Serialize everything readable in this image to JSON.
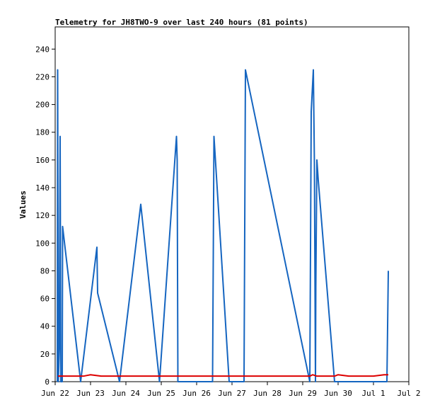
{
  "chart_data": {
    "type": "line",
    "title": "Telemetry for JH8TWO-9 over last 240 hours (81 points)",
    "xlabel": "",
    "ylabel": "Values",
    "x_ticks": [
      "Jun 22",
      "Jun 23",
      "Jun 24",
      "Jun 25",
      "Jun 26",
      "Jun 27",
      "Jun 28",
      "Jun 29",
      "Jun 30",
      "Jul 1",
      "Jul 2"
    ],
    "xlim": [
      0,
      10
    ],
    "ylim": [
      0,
      256
    ],
    "y_ticks": [
      0,
      20,
      40,
      60,
      80,
      100,
      120,
      140,
      160,
      180,
      200,
      220,
      240
    ],
    "grid": false,
    "series": [
      {
        "color": "#1565c0",
        "points": [
          [
            0.06,
            0
          ],
          [
            0.07,
            225
          ],
          [
            0.08,
            112
          ],
          [
            0.09,
            0
          ],
          [
            0.12,
            26
          ],
          [
            0.14,
            177
          ],
          [
            0.16,
            0
          ],
          [
            0.2,
            0
          ],
          [
            0.21,
            112
          ],
          [
            0.72,
            0
          ],
          [
            1.18,
            97
          ],
          [
            1.2,
            64
          ],
          [
            1.82,
            0
          ],
          [
            2.42,
            128
          ],
          [
            2.95,
            0
          ],
          [
            3.43,
            177
          ],
          [
            3.45,
            160
          ],
          [
            3.47,
            0
          ],
          [
            4.45,
            0
          ],
          [
            4.47,
            88
          ],
          [
            4.49,
            177
          ],
          [
            4.92,
            0
          ],
          [
            5.34,
            0
          ],
          [
            5.36,
            112
          ],
          [
            5.38,
            225
          ],
          [
            7.2,
            0
          ],
          [
            7.22,
            96
          ],
          [
            7.24,
            195
          ],
          [
            7.26,
            205
          ],
          [
            7.3,
            225
          ],
          [
            7.33,
            158
          ],
          [
            7.36,
            0
          ],
          [
            7.37,
            68
          ],
          [
            7.4,
            160
          ],
          [
            7.44,
            145
          ],
          [
            7.9,
            0
          ],
          [
            9.38,
            0
          ],
          [
            9.4,
            40
          ],
          [
            9.42,
            80
          ]
        ]
      },
      {
        "color": "#dd0000",
        "points": [
          [
            0.08,
            4
          ],
          [
            0.3,
            4
          ],
          [
            0.8,
            4
          ],
          [
            1.0,
            5
          ],
          [
            1.3,
            4
          ],
          [
            2.0,
            4
          ],
          [
            3.0,
            4
          ],
          [
            4.0,
            4
          ],
          [
            5.0,
            4
          ],
          [
            6.0,
            4
          ],
          [
            7.0,
            4
          ],
          [
            7.2,
            4
          ],
          [
            7.28,
            5
          ],
          [
            7.4,
            4
          ],
          [
            7.9,
            4
          ],
          [
            8.0,
            5
          ],
          [
            8.3,
            4
          ],
          [
            9.0,
            4
          ],
          [
            9.3,
            5
          ],
          [
            9.42,
            5
          ]
        ]
      }
    ]
  }
}
